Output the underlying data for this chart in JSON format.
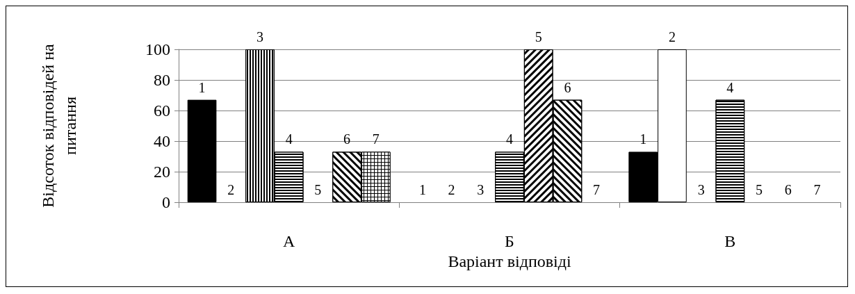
{
  "chart_data": {
    "type": "bar",
    "xlabel": "Варіант відповіді",
    "ylabel": "Відсоток відповідей на\nпитання",
    "categories": [
      "А",
      "Б",
      "В"
    ],
    "series": [
      {
        "name": "1",
        "color": "#000000",
        "values": [
          67,
          0,
          33
        ]
      },
      {
        "name": "2",
        "color": "#ffffff",
        "values": [
          0,
          0,
          100
        ]
      },
      {
        "name": "3",
        "color": "#ffffff",
        "values": [
          100,
          0,
          0
        ]
      },
      {
        "name": "4",
        "color": "#ffffff",
        "values": [
          33,
          33,
          67
        ]
      },
      {
        "name": "5",
        "color": "#ffffff",
        "values": [
          0,
          100,
          0
        ]
      },
      {
        "name": "6",
        "color": "#ffffff",
        "values": [
          33,
          67,
          0
        ]
      },
      {
        "name": "7",
        "color": "#000000",
        "values": [
          33,
          0,
          0
        ]
      }
    ],
    "ylim": [
      0,
      100
    ],
    "yticks": [
      0,
      20,
      40,
      60,
      80,
      100
    ],
    "grid": "y",
    "legend": false
  }
}
